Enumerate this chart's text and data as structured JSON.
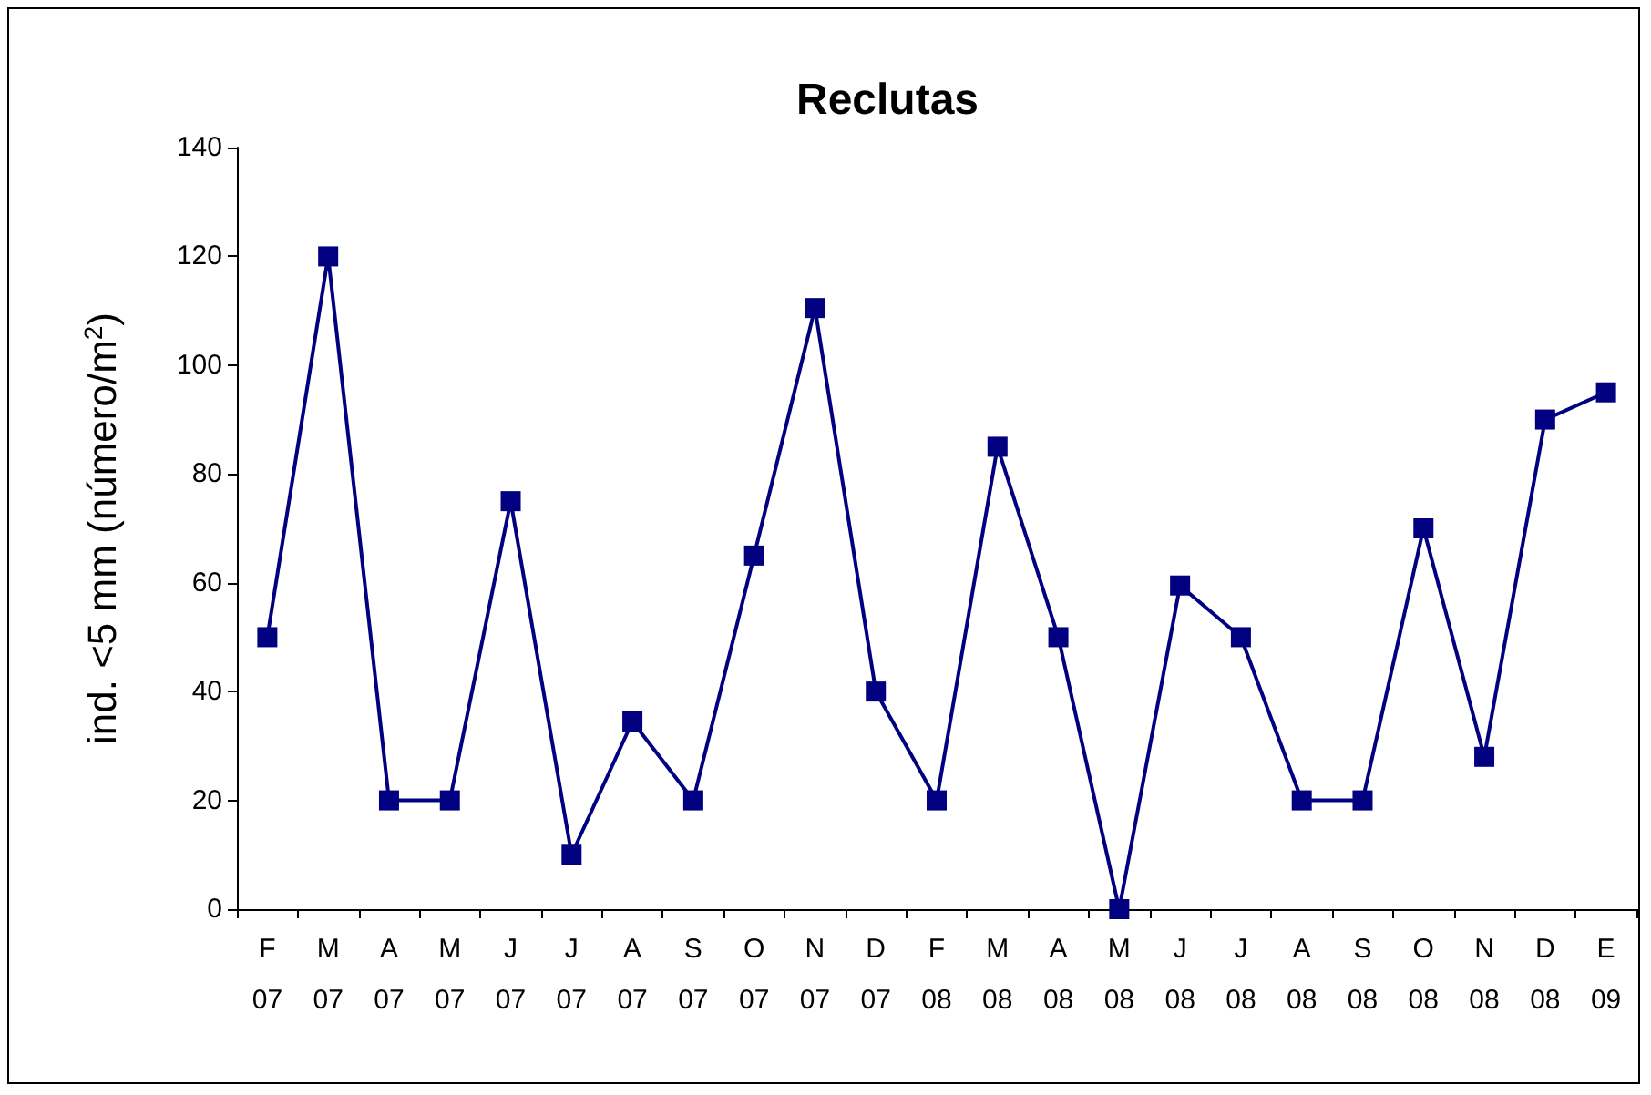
{
  "chart_data": {
    "type": "line",
    "title": "Reclutas",
    "ylabel": "ind. <5 mm (número/m$^{2}$)",
    "categories": [
      "F\n07",
      "M\n07",
      "A\n07",
      "M\n07",
      "J\n07",
      "J\n07",
      "A\n07",
      "S\n07",
      "O\n07",
      "N\n07",
      "D\n07",
      "F\n08",
      "M\n08",
      "A\n08",
      "M\n08",
      "J\n08",
      "J\n08",
      "A\n08",
      "S\n08",
      "O\n08",
      "N\n08",
      "D\n08",
      "E\n09"
    ],
    "series": [
      {
        "color": "#000080",
        "values": [
          50,
          120,
          20,
          20,
          75,
          10,
          34.5,
          20,
          65,
          110.5,
          40,
          20,
          85,
          50,
          0,
          59.5,
          50,
          20,
          20,
          70,
          28,
          90,
          95
        ]
      }
    ],
    "ylim": [
      0,
      140
    ],
    "yticks": [
      0,
      20,
      40,
      60,
      80,
      100,
      120,
      140
    ],
    "grid": false,
    "marker": "square",
    "line_style": "solid"
  }
}
